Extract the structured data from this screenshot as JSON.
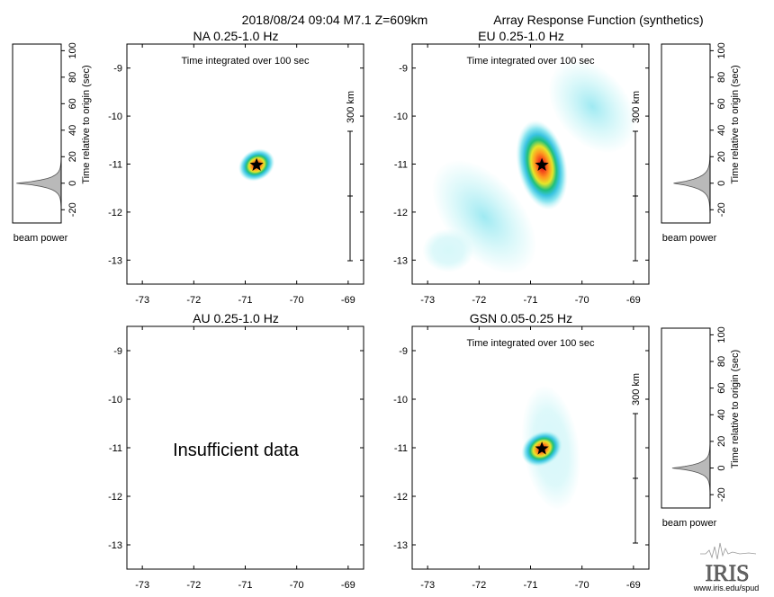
{
  "header": {
    "event_label": "2018/08/24 09:04  M7.1  Z=609km",
    "title": "Array Response Function (synthetics)"
  },
  "chart_data": [
    {
      "type": "heatmap",
      "panel": "NA",
      "title": "NA  0.25-1.0 Hz",
      "subtitle": "Time integrated over 100 sec",
      "x_ticks": [
        -73,
        -72,
        -71,
        -70,
        -69
      ],
      "y_ticks": [
        -9,
        -10,
        -11,
        -12,
        -13
      ],
      "xlim": [
        -73.3,
        -68.7
      ],
      "ylim": [
        -13.5,
        -8.5
      ],
      "star": {
        "x": -70.78,
        "y": -11.02
      },
      "peak": {
        "x": -70.78,
        "y": -11.02,
        "sx": 0.37,
        "sy": 0.32,
        "rotation_deg": -30
      },
      "secondary_lobes": [],
      "scale_bar_label": "300 km",
      "message": ""
    },
    {
      "type": "heatmap",
      "panel": "EU",
      "title": "EU  0.25-1.0 Hz",
      "subtitle": "Time integrated over 100 sec",
      "x_ticks": [
        -73,
        -72,
        -71,
        -70,
        -69
      ],
      "y_ticks": [
        -9,
        -10,
        -11,
        -12,
        -13
      ],
      "xlim": [
        -73.3,
        -68.7
      ],
      "ylim": [
        -13.5,
        -8.5
      ],
      "star": {
        "x": -70.78,
        "y": -11.02
      },
      "peak": {
        "x": -70.78,
        "y": -11.02,
        "sx": 0.48,
        "sy": 0.95,
        "rotation_deg": -12
      },
      "secondary_lobes": [
        {
          "x": -71.9,
          "y": -12.1,
          "sx": 0.75,
          "sy": 1.4,
          "rotation_deg": -40,
          "level": 0.22
        },
        {
          "x": -69.8,
          "y": -9.8,
          "sx": 0.7,
          "sy": 1.1,
          "rotation_deg": -40,
          "level": 0.22
        },
        {
          "x": -72.6,
          "y": -12.8,
          "sx": 0.5,
          "sy": 0.45,
          "rotation_deg": 0,
          "level": 0.18
        }
      ],
      "scale_bar_label": "300 km",
      "message": ""
    },
    {
      "type": "heatmap",
      "panel": "AU",
      "title": "AU  0.25-1.0 Hz",
      "subtitle": "",
      "x_ticks": [
        -73,
        -72,
        -71,
        -70,
        -69
      ],
      "y_ticks": [
        -9,
        -10,
        -11,
        -12,
        -13
      ],
      "xlim": [
        -73.3,
        -68.7
      ],
      "ylim": [
        -13.5,
        -8.5
      ],
      "star": null,
      "peak": null,
      "secondary_lobes": [],
      "scale_bar_label": "",
      "message": "Insufficient data"
    },
    {
      "type": "heatmap",
      "panel": "GSN",
      "title": "GSN  0.05-0.25 Hz",
      "subtitle": "Time integrated over 100 sec",
      "x_ticks": [
        -73,
        -72,
        -71,
        -70,
        -69
      ],
      "y_ticks": [
        -9,
        -10,
        -11,
        -12,
        -13
      ],
      "xlim": [
        -73.3,
        -68.7
      ],
      "ylim": [
        -13.5,
        -8.5
      ],
      "star": {
        "x": -70.78,
        "y": -11.02
      },
      "peak": {
        "x": -70.78,
        "y": -11.02,
        "sx": 0.42,
        "sy": 0.35,
        "rotation_deg": -30
      },
      "secondary_lobes": [
        {
          "x": -70.6,
          "y": -11.0,
          "sx": 0.55,
          "sy": 1.3,
          "rotation_deg": -8,
          "level": 0.16
        }
      ],
      "scale_bar_label": "300 km",
      "message": ""
    }
  ],
  "beam_power_panels": [
    {
      "axis_label": "Time relative to origin (sec)",
      "caption": "beam power",
      "y_ticks": [
        100,
        80,
        60,
        40,
        20,
        0,
        -20
      ],
      "ylim": [
        -30,
        105
      ],
      "peak_time": 0,
      "peak_amplitude": 0.92,
      "spread": 4
    },
    {
      "axis_label": "Time relative to origin (sec)",
      "caption": "beam power",
      "y_ticks": [
        100,
        80,
        60,
        40,
        20,
        0,
        -20
      ],
      "ylim": [
        -30,
        105
      ],
      "peak_time": 0,
      "peak_amplitude": 0.75,
      "spread": 5
    },
    {
      "axis_label": "Time relative to origin (sec)",
      "caption": "beam power",
      "y_ticks": [
        100,
        80,
        60,
        40,
        20,
        0,
        -20
      ],
      "ylim": [
        -30,
        105
      ],
      "peak_time": 0,
      "peak_amplitude": 0.78,
      "spread": 4
    }
  ],
  "logo": {
    "name": "IRIS",
    "url": "www.iris.edu/spud"
  },
  "colors": {
    "colormap": [
      "#ffffff",
      "#cff6f8",
      "#8ee6f0",
      "#38c3e0",
      "#1fbf7a",
      "#e6e62a",
      "#ff9a1f",
      "#f03a1a",
      "#c00000"
    ],
    "beam_fill": "#b9b9b9"
  }
}
